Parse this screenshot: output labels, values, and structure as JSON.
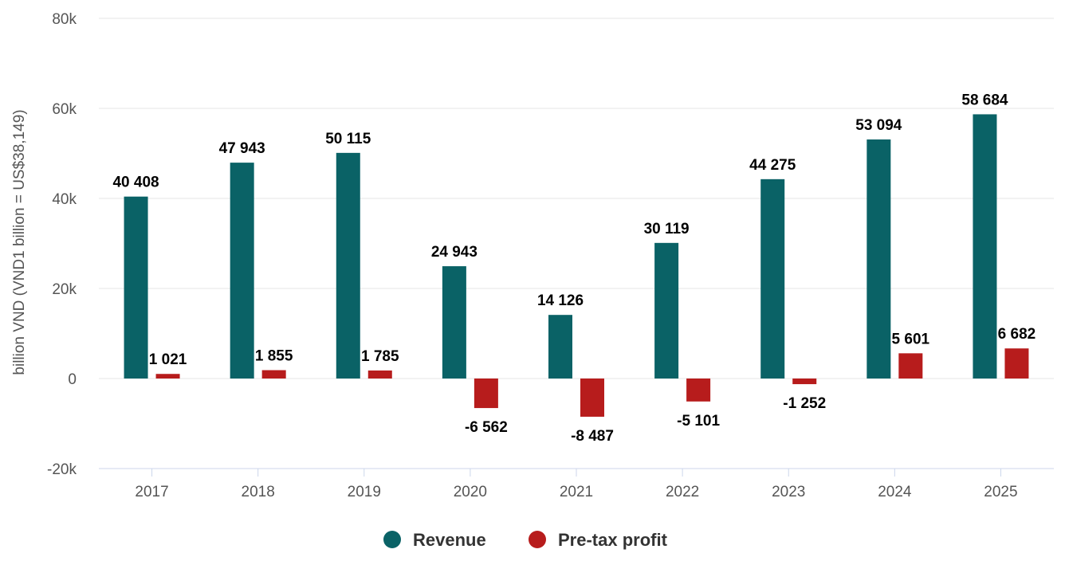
{
  "chart_data": {
    "type": "bar",
    "title": "",
    "xlabel": "",
    "ylabel": "billion VND (VND1 billion = US$38,149)",
    "categories": [
      "2017",
      "2018",
      "2019",
      "2020",
      "2021",
      "2022",
      "2023",
      "2024",
      "2025"
    ],
    "series": [
      {
        "name": "Revenue",
        "color": "#0a6266",
        "values": [
          40408,
          47943,
          50115,
          24943,
          14126,
          30119,
          44275,
          53094,
          58684
        ],
        "labels": [
          "40 408",
          "47 943",
          "50 115",
          "24 943",
          "14 126",
          "30 119",
          "44 275",
          "53 094",
          "58 684"
        ]
      },
      {
        "name": "Pre-tax profit",
        "color": "#b71c1c",
        "values": [
          1021,
          1855,
          1785,
          -6562,
          -8487,
          -5101,
          -1252,
          5601,
          6682
        ],
        "labels": [
          "1 021",
          "1 855",
          "1 785",
          "-6 562",
          "-8 487",
          "-5 101",
          "-1 252",
          "5 601",
          "6 682"
        ]
      }
    ],
    "ylim": [
      -20000,
      80000
    ],
    "yticks": [
      -20000,
      0,
      20000,
      40000,
      60000,
      80000
    ],
    "ytick_labels": [
      "-20k",
      "0",
      "20k",
      "40k",
      "60k",
      "80k"
    ],
    "grid": true,
    "legend_position": "bottom-center"
  }
}
